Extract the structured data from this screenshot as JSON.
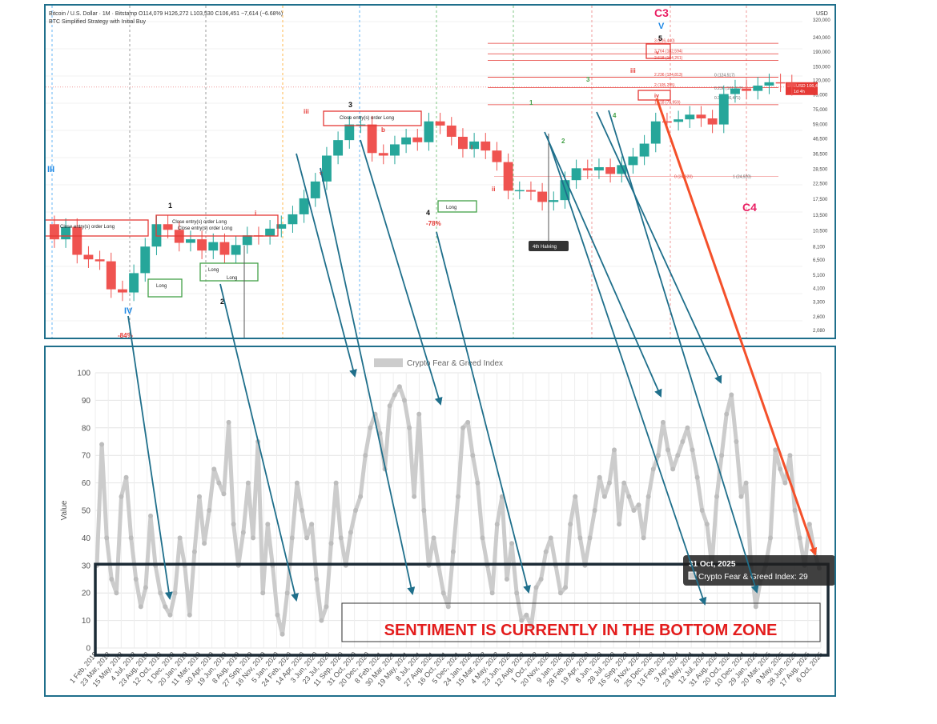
{
  "top_chart": {
    "symbol_line": "Bitcoin / U.S. Dollar · 1M · Bitstamp",
    "ohlc": {
      "o": "O114,079",
      "h": "H126,272",
      "l": "L103,530",
      "c": "C106,451",
      "chg": "−7,614 (−6.68%)"
    },
    "strategy": "BTC Simplified Strategy with Initial Buy",
    "currency": "USD",
    "price_ticks": [
      "320,000",
      "240,000",
      "190,000",
      "150,000",
      "120,000",
      "95,000",
      "75,000",
      "59,000",
      "46,500",
      "36,500",
      "28,500",
      "22,500",
      "17,500",
      "13,500",
      "10,500",
      "8,100",
      "6,500",
      "5,100",
      "4,100",
      "3,300",
      "2,600",
      "2,080"
    ],
    "price_tag": {
      "label": "BTCUSD",
      "value": "106,451",
      "sub": "1d 4h"
    },
    "fib_labels": [
      "3 (216,440)",
      "2.764 (182,594)",
      "2.618 (164,261)",
      "2.236 (124,813)",
      "2 (105,295)",
      "1.618 (79,959)",
      "0 (124,517)",
      "0.236 (101,012)",
      "0.382 (86,471)",
      "0 (24,920)",
      "1 (24,920)"
    ],
    "wave_labels": [
      "III",
      "IV",
      "1",
      "2",
      "3",
      "4",
      "5",
      "i",
      "ii",
      "iii",
      "iv",
      "v",
      "C3",
      "V",
      "C4",
      "b"
    ],
    "annotations": {
      "close_entry": "Close entry(s) order Long",
      "long": "Long",
      "halving": "4th Halving",
      "pct_a": "-84%",
      "pct_b": "-78%"
    },
    "candles": [
      9000,
      11000,
      7000,
      6500,
      6300,
      4000,
      3800,
      5200,
      8000,
      11500,
      10500,
      8500,
      9000,
      7500,
      8600,
      7000,
      8200,
      9600,
      9500,
      10700,
      11500,
      13500,
      17500,
      23000,
      35000,
      45000,
      58000,
      58000,
      36500,
      35000,
      42000,
      47000,
      43500,
      61000,
      57000,
      47500,
      39000,
      44000,
      38000,
      31500,
      19800,
      20000,
      19500,
      16500,
      17000,
      23500,
      28500,
      27500,
      29000,
      26000,
      30000,
      34500,
      42500,
      61000,
      60500,
      63000,
      68000,
      64000,
      58000,
      95000,
      104000,
      100000,
      109000,
      115000,
      113000,
      106451
    ],
    "colors": {
      "up": "#26a69a",
      "down": "#ef5350",
      "fib": "#e53935",
      "wave_red": "#e53935",
      "wave_blue": "#1e88e5",
      "wave_green": "#43a047"
    }
  },
  "bottom_chart": {
    "legend_label": "Crypto Fear & Greed Index",
    "ylabel": "Value",
    "tooltip": {
      "date": "31 Oct, 2025",
      "text": "Crypto Fear & Greed Index: 29"
    },
    "banner": "SENTIMENT IS CURRENTLY IN THE BOTTOM ZONE",
    "colors": {
      "series": "#cccccc",
      "zone_border": "#1c2b36",
      "banner_text": "#e31c1c",
      "arrow_teal": "#1f6f8b",
      "arrow_red": "#f4502a"
    }
  },
  "chart_data": {
    "type": "line",
    "title": "Crypto Fear & Greed Index",
    "xlabel": "",
    "ylabel": "Value",
    "ylim": [
      0,
      100
    ],
    "grid": true,
    "legend": "top",
    "y_ticks": [
      0,
      10,
      20,
      30,
      40,
      50,
      60,
      70,
      80,
      90,
      100
    ],
    "x_tick_labels": [
      "1 Feb, 2018",
      "23 Mar, 2018",
      "15 May, 2018",
      "4 Jul, 2018",
      "23 Aug, 2018",
      "12 Oct, 2018",
      "1 Dec, 2018",
      "20 Jan, 2019",
      "11 Mar, 2019",
      "30 Apr, 2019",
      "19 Jun, 2019",
      "8 Aug, 2019",
      "27 Sep, 2019",
      "16 Nov, 2019",
      "5 Jan, 2020",
      "24 Feb, 2020",
      "14 Apr, 2020",
      "3 Jun, 2020",
      "23 Jul, 2020",
      "11 Sep, 2020",
      "31 Oct, 2020",
      "20 Dec, 2020",
      "8 Feb, 2021",
      "30 Mar, 2021",
      "19 May, 2021",
      "8 Jul, 2021",
      "27 Aug, 2021",
      "16 Oct, 2021",
      "5 Dec, 2021",
      "24 Jan, 2022",
      "15 Mar, 2022",
      "4 May, 2022",
      "23 Jun, 2022",
      "12 Aug, 2022",
      "1 Oct, 2022",
      "20 Nov, 2022",
      "9 Jan, 2023",
      "28 Feb, 2023",
      "19 Apr, 2023",
      "8 Jun, 2023",
      "28 Jul, 2023",
      "16 Sep, 2023",
      "5 Nov, 2023",
      "25 Dec, 2023",
      "13 Feb, 2024",
      "3 Apr, 2024",
      "23 May, 2024",
      "12 Jul, 2024",
      "31 Aug, 2024",
      "20 Oct, 2024",
      "10 Dec, 2024",
      "29 Jan, 2025",
      "20 Mar, 2025",
      "9 May, 2025",
      "28 Jun, 2025",
      "17 Aug, 2025",
      "6 Oct, 2025"
    ],
    "series": [
      {
        "name": "Crypto Fear & Greed Index",
        "values": [
          30,
          74,
          40,
          25,
          20,
          55,
          62,
          40,
          25,
          15,
          22,
          48,
          30,
          20,
          15,
          12,
          20,
          40,
          30,
          12,
          35,
          55,
          38,
          50,
          65,
          60,
          56,
          82,
          45,
          30,
          42,
          60,
          40,
          75,
          20,
          45,
          30,
          12,
          5,
          20,
          40,
          60,
          50,
          40,
          45,
          25,
          10,
          15,
          38,
          60,
          40,
          30,
          42,
          50,
          55,
          70,
          80,
          85,
          78,
          65,
          88,
          92,
          95,
          90,
          80,
          55,
          85,
          50,
          30,
          40,
          30,
          20,
          15,
          35,
          55,
          80,
          82,
          70,
          60,
          40,
          30,
          20,
          45,
          55,
          25,
          38,
          20,
          10,
          12,
          8,
          22,
          25,
          35,
          40,
          30,
          20,
          22,
          45,
          55,
          40,
          30,
          40,
          50,
          62,
          55,
          60,
          72,
          45,
          60,
          55,
          50,
          52,
          40,
          55,
          65,
          70,
          82,
          72,
          65,
          70,
          75,
          80,
          72,
          62,
          50,
          45,
          30,
          55,
          70,
          85,
          92,
          75,
          55,
          60,
          30,
          15,
          25,
          30,
          40,
          72,
          65,
          60,
          70,
          50,
          40,
          30,
          45,
          35,
          29
        ]
      }
    ]
  }
}
